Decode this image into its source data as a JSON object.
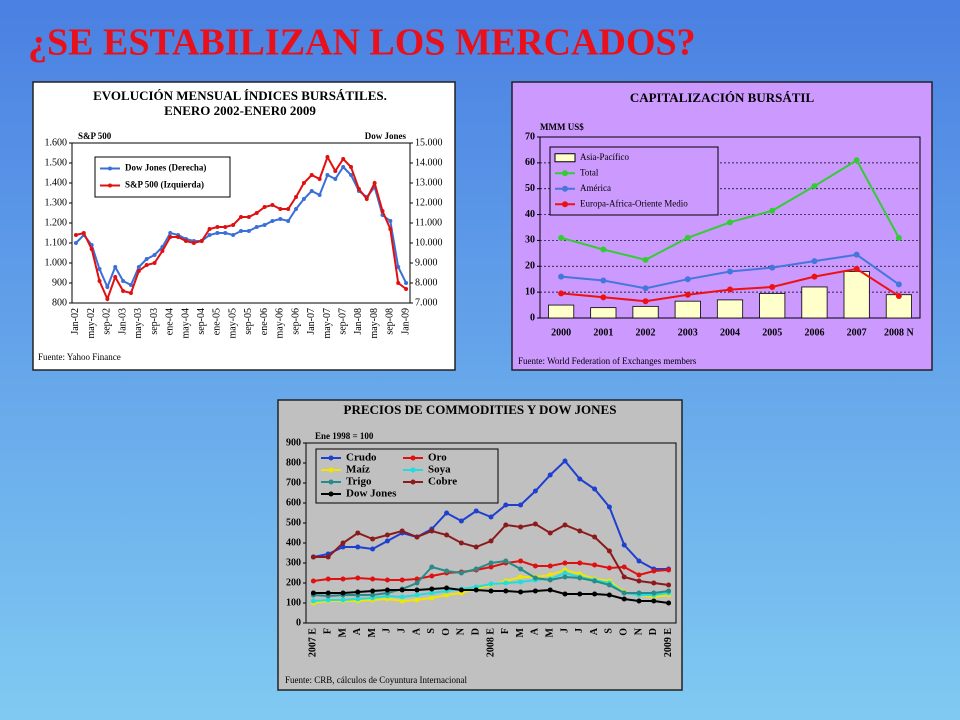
{
  "title": "¿SE ESTABILIZAN LOS MERCADOS?",
  "chart_data": [
    {
      "type": "line",
      "title": "EVOLUCIÓN MENSUAL ÍNDICES BURSÁTILES.",
      "subtitle": "ENERO 2002-ENER0 2009",
      "y_label": "S&P 500",
      "y2_label": "Dow Jones",
      "source": "Fuente: Yahoo Finance",
      "legend": "upper left",
      "categories": [
        "Jan-02",
        null,
        "may-02",
        null,
        "sep-02",
        null,
        "Jan-03",
        null,
        "may-03",
        null,
        "sep-03",
        null,
        "ene-04",
        null,
        "may-04",
        null,
        "sep-04",
        null,
        "ene-05",
        null,
        "may-05",
        null,
        "sep-05",
        null,
        "ene-06",
        null,
        "may-06",
        null,
        "sep-06",
        null,
        "Jan-07",
        null,
        "may-07",
        null,
        "sep-07",
        null,
        "Jan-08",
        null,
        "may-08",
        null,
        "sep-08",
        null,
        "Jan-09"
      ],
      "ylim": [
        800,
        1600
      ],
      "yticks": [
        800,
        900,
        {
          "value": 1000,
          "label": "1.000"
        },
        {
          "value": 1100,
          "label": "1.100"
        },
        {
          "value": 1200,
          "label": "1.200"
        },
        {
          "value": 1300,
          "label": "1.300"
        },
        {
          "value": 1400,
          "label": "1.400"
        },
        {
          "value": 1500,
          "label": "1.500"
        },
        {
          "value": 1600,
          "label": "1.600"
        }
      ],
      "y2lim": [
        7000,
        15000
      ],
      "y2ticks": [
        {
          "value": 7000,
          "label": "7.000"
        },
        {
          "value": 8000,
          "label": "8.000"
        },
        {
          "value": 9000,
          "label": "9.000"
        },
        {
          "value": 10000,
          "label": "10.000"
        },
        {
          "value": 11000,
          "label": "11.000"
        },
        {
          "value": 12000,
          "label": "12.000"
        },
        {
          "value": 13000,
          "label": "13.000"
        },
        {
          "value": 14000,
          "label": "14.000"
        },
        {
          "value": 15000,
          "label": "15.000"
        }
      ],
      "series": [
        {
          "name": "Dow Jones (Derecha)",
          "color": "#3a6fd8",
          "axis": "y2",
          "values": [
            10000,
            10400,
            9900,
            8700,
            7800,
            8800,
            8100,
            7900,
            8800,
            9200,
            9400,
            9800,
            10500,
            10400,
            10200,
            10100,
            10100,
            10400,
            10500,
            10500,
            10400,
            10600,
            10600,
            10800,
            10900,
            11100,
            11200,
            11100,
            11700,
            12200,
            12600,
            12400,
            13400,
            13200,
            13800,
            13400,
            12600,
            12300,
            12800,
            11400,
            11100,
            8800,
            8000
          ]
        },
        {
          "name": "S&P 500 (Izquierda)",
          "color": "#e01010",
          "values": [
            1140,
            1150,
            1070,
            910,
            820,
            930,
            860,
            850,
            960,
            990,
            1000,
            1060,
            1130,
            1130,
            1110,
            1100,
            1110,
            1170,
            1180,
            1180,
            1190,
            1230,
            1230,
            1250,
            1280,
            1290,
            1270,
            1270,
            1330,
            1400,
            1440,
            1420,
            1530,
            1460,
            1520,
            1480,
            1370,
            1320,
            1400,
            1260,
            1170,
            900,
            870
          ]
        }
      ]
    },
    {
      "type": "combo",
      "title": "CAPITALIZACIÓN BURSÁTIL",
      "y_label": "MMM US$",
      "source": "Fuente: World Federation of Exchanges members",
      "legend": "upper left",
      "grid": true,
      "categories": [
        "2000",
        "2001",
        "2002",
        "2003",
        "2004",
        "2005",
        "2006",
        "2007",
        "2008 N"
      ],
      "ylim": [
        0,
        70
      ],
      "yticks": [
        0,
        10,
        20,
        30,
        40,
        50,
        60,
        70
      ],
      "series": [
        {
          "name": "Asia-Pacífico",
          "type": "bar",
          "color": "#ffffcc",
          "values": [
            5,
            4,
            4.5,
            6.5,
            7,
            9.5,
            12,
            18,
            9
          ]
        },
        {
          "name": "Total",
          "type": "line",
          "color": "#33cc33",
          "values": [
            31,
            26.5,
            22.5,
            31,
            37,
            41.5,
            51,
            61,
            31
          ]
        },
        {
          "name": "América",
          "type": "line",
          "color": "#4477dd",
          "values": [
            16,
            14.5,
            11.5,
            15,
            18,
            19.5,
            22,
            24.5,
            13
          ]
        },
        {
          "name": "Europa-Africa-Oriente Medio",
          "type": "line",
          "color": "#ee1111",
          "values": [
            9.5,
            8,
            6.5,
            9,
            11,
            12,
            16,
            19,
            8.5
          ]
        }
      ]
    },
    {
      "type": "line",
      "title": "PRECIOS DE COMMODITIES Y DOW JONES",
      "annotation": "Ene 1998 = 100",
      "source": "Fuente: CRB, cálculos de Coyuntura Internacional",
      "legend": "upper left",
      "categories": [
        "2007 E",
        "F",
        "M",
        "A",
        "M",
        "J",
        "J",
        "A",
        "S",
        "O",
        "N",
        "D",
        "2008 E",
        "F",
        "M",
        "A",
        "M",
        "J",
        "J",
        "A",
        "S",
        "O",
        "N",
        "D",
        "2009 E"
      ],
      "ylim": [
        0,
        900
      ],
      "yticks": [
        0,
        100,
        200,
        300,
        400,
        500,
        600,
        700,
        800,
        900
      ],
      "series": [
        {
          "name": "Crudo",
          "color": "#1f3fd0",
          "values": [
            330,
            345,
            380,
            380,
            370,
            410,
            450,
            430,
            470,
            550,
            510,
            560,
            530,
            590,
            590,
            660,
            740,
            810,
            720,
            670,
            580,
            390,
            310,
            270,
            270
          ]
        },
        {
          "name": "Oro",
          "color": "#e01010",
          "values": [
            210,
            220,
            220,
            225,
            220,
            215,
            215,
            220,
            235,
            250,
            255,
            265,
            280,
            300,
            310,
            285,
            285,
            300,
            300,
            290,
            275,
            280,
            240,
            260,
            265
          ]
        },
        {
          "name": "Maíz",
          "color": "#f2e600",
          "values": [
            100,
            110,
            110,
            110,
            115,
            120,
            110,
            115,
            125,
            140,
            150,
            170,
            190,
            210,
            230,
            230,
            240,
            265,
            245,
            220,
            210,
            155,
            140,
            130,
            140
          ]
        },
        {
          "name": "Soya",
          "color": "#22dddd",
          "values": [
            110,
            115,
            115,
            120,
            125,
            135,
            130,
            140,
            150,
            160,
            170,
            180,
            195,
            200,
            205,
            215,
            220,
            250,
            230,
            215,
            200,
            150,
            140,
            140,
            150
          ]
        },
        {
          "name": "Trigo",
          "color": "#2a8a8a",
          "values": [
            140,
            135,
            140,
            140,
            140,
            150,
            170,
            200,
            280,
            260,
            250,
            270,
            300,
            310,
            270,
            225,
            215,
            230,
            225,
            210,
            190,
            150,
            150,
            150,
            160
          ]
        },
        {
          "name": "Cobre",
          "color": "#8b1a1a",
          "values": [
            330,
            330,
            400,
            450,
            420,
            440,
            460,
            430,
            460,
            440,
            400,
            380,
            410,
            490,
            480,
            495,
            450,
            490,
            460,
            430,
            360,
            230,
            210,
            200,
            190
          ]
        },
        {
          "name": "Dow Jones",
          "color": "#000000",
          "values": [
            150,
            150,
            150,
            155,
            160,
            165,
            165,
            165,
            170,
            175,
            165,
            165,
            160,
            160,
            155,
            160,
            165,
            145,
            145,
            145,
            140,
            120,
            110,
            110,
            100
          ]
        }
      ]
    }
  ]
}
